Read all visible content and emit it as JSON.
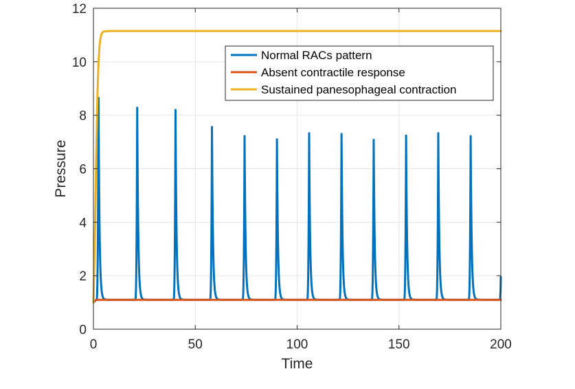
{
  "chart_data": {
    "type": "line",
    "xlabel": "Time",
    "ylabel": "Pressure",
    "xlim": [
      0,
      200
    ],
    "ylim": [
      0,
      12
    ],
    "xticks": [
      0,
      50,
      100,
      150,
      200
    ],
    "yticks": [
      0,
      2,
      4,
      6,
      8,
      10,
      12
    ],
    "grid": true,
    "legend_position": "top-right",
    "series": [
      {
        "name": "Normal RACs pattern",
        "color": "#0072BD",
        "baseline": 1.1,
        "peak_width": 0.9,
        "end_value": 1.95,
        "peaks": [
          {
            "x": 2.5,
            "y": 8.65
          },
          {
            "x": 21.5,
            "y": 8.28
          },
          {
            "x": 40.3,
            "y": 8.2
          },
          {
            "x": 58.2,
            "y": 7.56
          },
          {
            "x": 74.2,
            "y": 7.22
          },
          {
            "x": 90.1,
            "y": 7.1
          },
          {
            "x": 105.9,
            "y": 7.33
          },
          {
            "x": 121.8,
            "y": 7.3
          },
          {
            "x": 137.6,
            "y": 7.08
          },
          {
            "x": 153.5,
            "y": 7.24
          },
          {
            "x": 169.3,
            "y": 7.33
          },
          {
            "x": 185.2,
            "y": 7.22
          }
        ]
      },
      {
        "name": "Absent contractile response",
        "color": "#D95319",
        "x": [
          0,
          0.5,
          1,
          1.5,
          2,
          200
        ],
        "y": [
          1.0,
          1.05,
          1.08,
          1.09,
          1.1,
          1.1
        ]
      },
      {
        "name": "Sustained panesophageal contraction",
        "color": "#EDB120",
        "x": [
          0,
          0.5,
          1,
          1.5,
          2,
          2.5,
          3,
          3.5,
          4,
          4.5,
          5,
          6,
          8,
          200
        ],
        "y": [
          1.0,
          2.6,
          4.8,
          7.0,
          8.8,
          10.0,
          10.6,
          10.9,
          11.05,
          11.1,
          11.13,
          11.14,
          11.15,
          11.15
        ]
      }
    ]
  }
}
